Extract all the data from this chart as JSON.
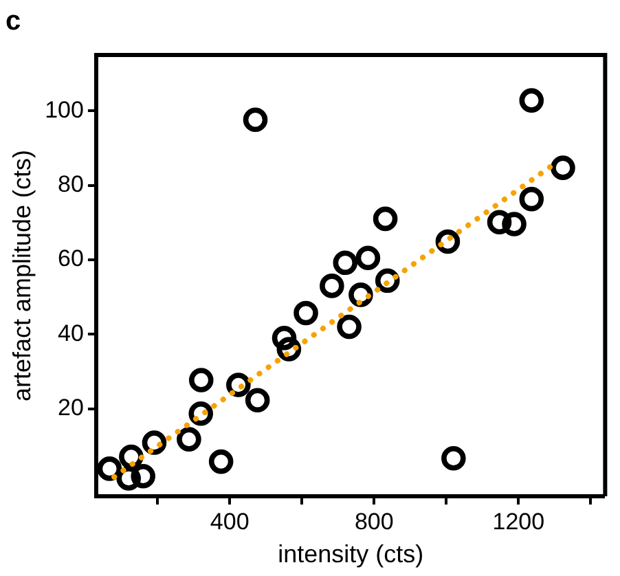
{
  "chart_data": {
    "type": "scatter",
    "title": "c",
    "xlabel": "intensity (cts)",
    "ylabel": "artefact amplitude (cts)",
    "xlim": [
      30,
      1440
    ],
    "xticks": [
      {
        "value": 200,
        "label": null
      },
      400,
      {
        "value": 600,
        "label": null
      },
      800,
      {
        "value": 1000,
        "label": null
      },
      1200,
      {
        "value": 1400,
        "label": null
      }
    ],
    "ylim": [
      -3.5,
      115
    ],
    "yticks": [
      20,
      40,
      60,
      80,
      100
    ],
    "grid": false,
    "legend": false,
    "marker": "circle",
    "series": [
      {
        "color": "#000000",
        "x": [
          471,
          1236,
          1323,
          1236,
          1147,
          1188,
          831,
          1004,
          783,
          720,
          683,
          837,
          763,
          731,
          611,
          551,
          564,
          321,
          424,
          477,
          320,
          287,
          376,
          1020,
          191,
          127,
          67,
          120,
          160
        ],
        "values": [
          97.6,
          102.8,
          84.7,
          76.3,
          70.1,
          69.6,
          71.0,
          64.9,
          60.5,
          59.2,
          53.0,
          54.4,
          50.6,
          42.0,
          45.7,
          39.0,
          36.0,
          27.7,
          26.4,
          22.3,
          18.7,
          11.8,
          5.8,
          6.7,
          10.9,
          7.1,
          3.9,
          1.3,
          1.9
        ]
      },
      {
        "type": "line",
        "color": "#f5a300",
        "line_style": "dotted",
        "marker": "none",
        "x": [
          80,
          1300
        ],
        "values": [
          1.7,
          85.8
        ]
      }
    ]
  }
}
